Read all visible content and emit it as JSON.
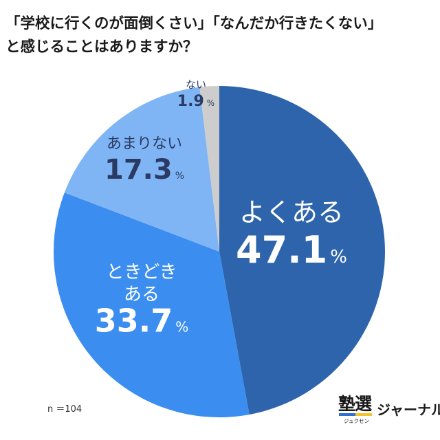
{
  "title": {
    "line1": "「学校に行くのが面倒くさい」「なんだか行きたくない」",
    "line2": "と感じることはありますか？"
  },
  "chart_data": {
    "type": "pie",
    "unit": "%",
    "slices": [
      {
        "label": "よくある",
        "value": 47.1,
        "color": "#2e64ab"
      },
      {
        "label": "ときどきある",
        "label_lines": [
          "ときどき",
          "ある"
        ],
        "value": 33.7,
        "color": "#3b8ef0"
      },
      {
        "label": "あまりない",
        "value": 17.3,
        "color": "#7fb5f4"
      },
      {
        "label": "ない",
        "value": 1.9,
        "color": "#cdcdcd"
      }
    ]
  },
  "sample_size": "n ＝104",
  "logo": {
    "kanji": "塾選",
    "reading": "ジュクセン",
    "word": "ジャーナル"
  }
}
